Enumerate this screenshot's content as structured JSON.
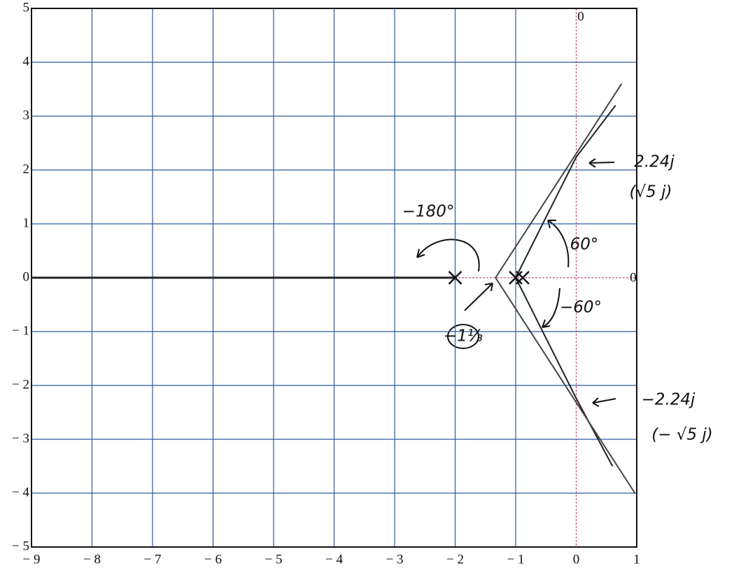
{
  "chart_data": {
    "type": "rootlocus",
    "xlim": [
      -9,
      1
    ],
    "ylim": [
      -5,
      5
    ],
    "xticks": [
      {
        "value": -9,
        "label": "− 9"
      },
      {
        "value": -8,
        "label": "− 8"
      },
      {
        "value": -7,
        "label": "− 7"
      },
      {
        "value": -6,
        "label": "− 6"
      },
      {
        "value": -5,
        "label": "− 5"
      },
      {
        "value": -4,
        "label": "− 4"
      },
      {
        "value": -3,
        "label": "− 3"
      },
      {
        "value": -2,
        "label": "− 2"
      },
      {
        "value": -1,
        "label": "− 1"
      },
      0,
      1
    ],
    "yticks": [
      5,
      4,
      3,
      2,
      1,
      0,
      {
        "value": -1,
        "label": "− 1"
      },
      {
        "value": -2,
        "label": "− 2"
      },
      {
        "value": -3,
        "label": "− 3"
      },
      {
        "value": -4,
        "label": "− 4"
      },
      {
        "value": -5,
        "label": "− 5"
      }
    ],
    "grid": true,
    "grid_color": "#2a5a9e",
    "zero_line_color": "#c4538a",
    "poles": {
      "x": [
        -2,
        -1,
        -1
      ],
      "y": [
        0,
        0,
        0
      ],
      "color": "#111111"
    },
    "series": [
      {
        "color": "#222222",
        "x": [
          -9,
          -2
        ],
        "y": [
          0,
          0
        ]
      },
      {
        "color": "#222222",
        "x": [
          -1,
          0,
          0.65
        ],
        "y": [
          0,
          2.24,
          3.2
        ]
      },
      {
        "color": "#222222",
        "x": [
          -1,
          0,
          0.6
        ],
        "y": [
          0,
          -2.24,
          -3.5
        ]
      },
      {
        "color": "#444444",
        "x": [
          -1.333,
          0.75
        ],
        "y": [
          0,
          3.6
        ]
      },
      {
        "color": "#444444",
        "x": [
          -1.333,
          0.97
        ],
        "y": [
          0,
          -4.0
        ]
      }
    ],
    "annotations": [
      "0",
      "0",
      "−180°",
      "60°",
      "−60°",
      "−1⅓",
      "2.24j",
      "(√5 j)",
      "−2.24j",
      "(− √5 j)"
    ]
  }
}
